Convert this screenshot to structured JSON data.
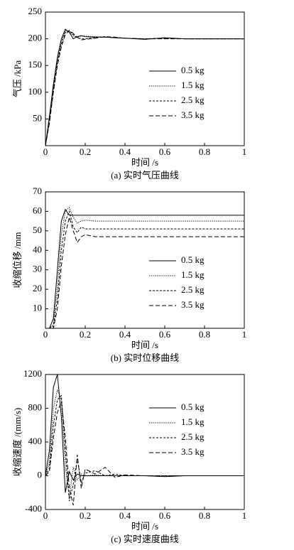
{
  "chart_data": [
    {
      "type": "line",
      "caption": "(a) 实时气压曲线",
      "x_label": "时间 /s",
      "y_label": "气压 /kPa",
      "xlim": [
        0,
        1
      ],
      "xticks": [
        0,
        0.2,
        0.4,
        0.6,
        0.8,
        1
      ],
      "ylim": [
        0,
        250
      ],
      "yticks": [
        50,
        100,
        150,
        200,
        250
      ],
      "x": [
        0,
        0.02,
        0.04,
        0.06,
        0.08,
        0.1,
        0.12,
        0.14,
        0.16,
        0.18,
        0.2,
        0.25,
        0.3,
        0.35,
        0.4,
        0.5,
        0.6,
        0.7,
        0.8,
        0.9,
        1
      ],
      "series": [
        {
          "name": "0.5 kg",
          "color": "#000",
          "dash": "solid",
          "values": [
            0,
            55,
            115,
            165,
            200,
            218,
            212,
            200,
            204,
            206,
            204,
            203,
            203,
            202,
            201,
            199,
            202,
            200,
            200,
            200,
            200
          ]
        },
        {
          "name": "1.5 kg",
          "color": "#000",
          "dash": "dotted",
          "values": [
            0,
            50,
            110,
            160,
            195,
            215,
            214,
            205,
            203,
            205,
            205,
            204,
            203,
            202,
            201,
            200,
            201,
            200,
            200,
            200,
            200
          ]
        },
        {
          "name": "2.5 kg",
          "color": "#000",
          "dash": "dashed",
          "values": [
            0,
            45,
            105,
            155,
            190,
            212,
            215,
            208,
            202,
            200,
            200,
            202,
            204,
            202,
            201,
            200,
            201,
            200,
            200,
            200,
            200
          ]
        },
        {
          "name": "3.5 kg",
          "color": "#000",
          "dash": "longdash",
          "values": [
            0,
            42,
            100,
            150,
            185,
            208,
            216,
            210,
            203,
            198,
            199,
            201,
            204,
            203,
            201,
            200,
            200,
            200,
            200,
            200,
            200
          ]
        }
      ]
    },
    {
      "type": "line",
      "caption": "(b) 实时位移曲线",
      "x_label": "时间 /s",
      "y_label": "收缩位移 /mm",
      "xlim": [
        0,
        1
      ],
      "xticks": [
        0,
        0.2,
        0.4,
        0.6,
        0.8,
        1
      ],
      "ylim": [
        0,
        70
      ],
      "yticks": [
        10,
        20,
        30,
        40,
        50,
        60,
        70
      ],
      "x": [
        0,
        0.02,
        0.04,
        0.06,
        0.08,
        0.1,
        0.12,
        0.14,
        0.16,
        0.18,
        0.2,
        0.25,
        0.3,
        0.35,
        0.4,
        0.5,
        0.6,
        0.7,
        0.8,
        0.9,
        1
      ],
      "series": [
        {
          "name": "0.5 kg",
          "color": "#000",
          "dash": "solid",
          "values": [
            0,
            0,
            5,
            30,
            55,
            61,
            58,
            58,
            58,
            58,
            58,
            58,
            58,
            58,
            58,
            58,
            58,
            58,
            58,
            58,
            58
          ]
        },
        {
          "name": "1.5 kg",
          "color": "#000",
          "dash": "dotted",
          "values": [
            0,
            0,
            2,
            22,
            48,
            60,
            62,
            57,
            54,
            55,
            55.5,
            55,
            55,
            55,
            55,
            55,
            55,
            55,
            55,
            55,
            55
          ]
        },
        {
          "name": "2.5 kg",
          "color": "#000",
          "dash": "dashed",
          "values": [
            0,
            0,
            1,
            15,
            40,
            55,
            60,
            52,
            49,
            52,
            51,
            51,
            51,
            51,
            51,
            51,
            51,
            51,
            51,
            51,
            51
          ]
        },
        {
          "name": "3.5 kg",
          "color": "#000",
          "dash": "longdash",
          "values": [
            0,
            0,
            0,
            10,
            32,
            48,
            57,
            50,
            44,
            47,
            48,
            47,
            47,
            47,
            47,
            47,
            47,
            47,
            47,
            47,
            47
          ]
        }
      ]
    },
    {
      "type": "line",
      "caption": "(c) 实时速度曲线",
      "x_label": "时间 /s",
      "y_label": "收缩速度 /(mm/s)",
      "xlim": [
        0,
        1
      ],
      "xticks": [
        0,
        0.2,
        0.4,
        0.6,
        0.8,
        1
      ],
      "ylim": [
        -400,
        1200
      ],
      "yticks": [
        -400,
        0,
        400,
        800,
        1200
      ],
      "x": [
        0,
        0.02,
        0.04,
        0.06,
        0.08,
        0.1,
        0.12,
        0.14,
        0.16,
        0.18,
        0.2,
        0.25,
        0.3,
        0.35,
        0.4,
        0.5,
        0.6,
        0.7,
        0.8,
        0.9,
        1
      ],
      "series": [
        {
          "name": "0.5 kg",
          "color": "#000",
          "dash": "solid",
          "values": [
            0,
            300,
            1050,
            1200,
            700,
            -200,
            50,
            -50,
            20,
            0,
            0,
            0,
            0,
            0,
            0,
            0,
            -10,
            0,
            0,
            0,
            0
          ]
        },
        {
          "name": "1.5 kg",
          "color": "#000",
          "dash": "dotted",
          "values": [
            0,
            150,
            800,
            1020,
            900,
            100,
            -250,
            100,
            -50,
            20,
            0,
            10,
            0,
            0,
            0,
            0,
            0,
            0,
            0,
            0,
            0
          ]
        },
        {
          "name": "2.5 kg",
          "color": "#000",
          "dash": "dashed",
          "values": [
            0,
            80,
            600,
            900,
            950,
            300,
            -300,
            -100,
            200,
            -80,
            30,
            60,
            0,
            20,
            0,
            0,
            0,
            0,
            0,
            0,
            0
          ]
        },
        {
          "name": "3.5 kg",
          "color": "#000",
          "dash": "longdash",
          "values": [
            0,
            50,
            450,
            750,
            880,
            450,
            -150,
            -350,
            250,
            -150,
            80,
            20,
            100,
            -20,
            10,
            0,
            0,
            0,
            0,
            0,
            0
          ]
        }
      ]
    }
  ]
}
